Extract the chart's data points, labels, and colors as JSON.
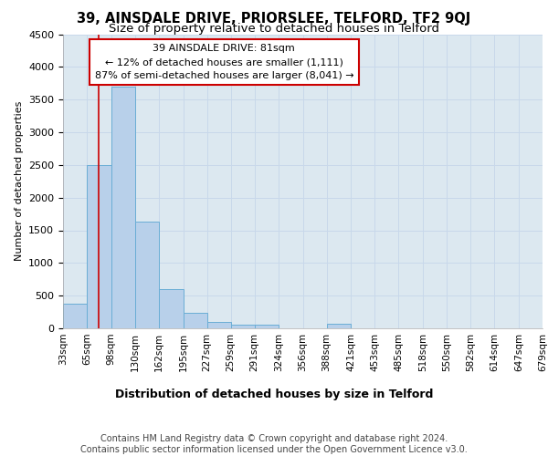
{
  "title1": "39, AINSDALE DRIVE, PRIORSLEE, TELFORD, TF2 9QJ",
  "title2": "Size of property relative to detached houses in Telford",
  "xlabel": "Distribution of detached houses by size in Telford",
  "ylabel": "Number of detached properties",
  "bin_edges": [
    33,
    65,
    98,
    130,
    162,
    195,
    227,
    259,
    291,
    324,
    356,
    388,
    421,
    453,
    485,
    518,
    550,
    582,
    614,
    647,
    679
  ],
  "bin_labels": [
    "33sqm",
    "65sqm",
    "98sqm",
    "130sqm",
    "162sqm",
    "195sqm",
    "227sqm",
    "259sqm",
    "291sqm",
    "324sqm",
    "356sqm",
    "388sqm",
    "421sqm",
    "453sqm",
    "485sqm",
    "518sqm",
    "550sqm",
    "582sqm",
    "614sqm",
    "647sqm",
    "679sqm"
  ],
  "bar_heights": [
    380,
    2500,
    3700,
    1630,
    600,
    240,
    100,
    60,
    55,
    0,
    0,
    70,
    0,
    0,
    0,
    0,
    0,
    0,
    0,
    0
  ],
  "bar_color": "#b8d0ea",
  "bar_edge_color": "#6aadd5",
  "property_size": 81,
  "red_line_color": "#cc0000",
  "annotation_text": "39 AINSDALE DRIVE: 81sqm\n← 12% of detached houses are smaller (1,111)\n87% of semi-detached houses are larger (8,041) →",
  "annotation_box_color": "#cc0000",
  "ylim": [
    0,
    4500
  ],
  "yticks": [
    0,
    500,
    1000,
    1500,
    2000,
    2500,
    3000,
    3500,
    4000,
    4500
  ],
  "grid_color": "#c8d8ea",
  "bg_color": "#dce8f0",
  "footnote": "Contains HM Land Registry data © Crown copyright and database right 2024.\nContains public sector information licensed under the Open Government Licence v3.0.",
  "title1_fontsize": 10.5,
  "title2_fontsize": 9.5,
  "xlabel_fontsize": 9,
  "ylabel_fontsize": 8,
  "annotation_fontsize": 8,
  "footnote_fontsize": 7,
  "tick_fontsize": 8,
  "xtick_fontsize": 7.5
}
